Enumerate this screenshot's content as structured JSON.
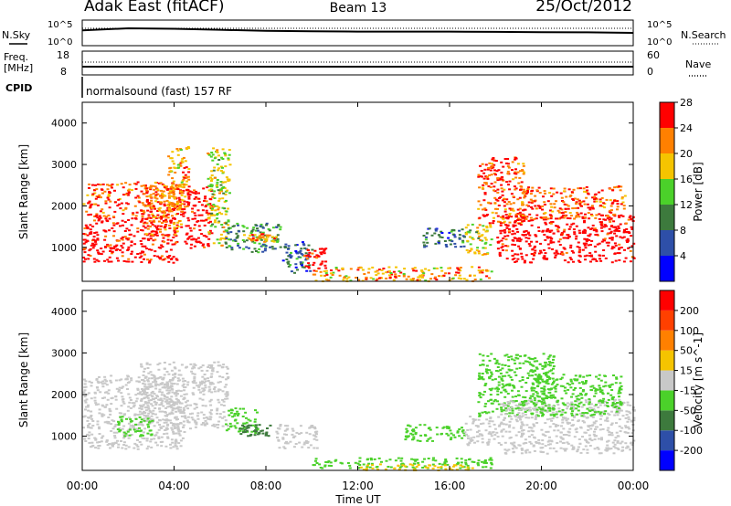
{
  "header": {
    "station": "Adak East (fitACF)",
    "beam": "Beam 13",
    "date": "25/Oct/2012"
  },
  "top_panels": {
    "nsky_label": "N.Sky",
    "nsearch_label": "N.Search",
    "noise_tick_top": "10^5",
    "noise_tick_bottom": "10^0",
    "freq_label_1": "Freq.",
    "freq_label_2": "[MHz]",
    "freq_ticks": [
      "18",
      "8"
    ],
    "nave_label": "Nave",
    "nave_ticks": [
      "60",
      "0"
    ],
    "cpid_label": "CPID",
    "cpid_text": "normalsound (fast) 157 RF"
  },
  "time_axis": {
    "label": "Time UT",
    "ticks": [
      "00:00",
      "04:00",
      "08:00",
      "12:00",
      "16:00",
      "20:00",
      "00:00"
    ]
  },
  "colors": {
    "power": [
      "#0000ff",
      "#2e4fa8",
      "#3d7a3d",
      "#4bd12a",
      "#f5c400",
      "#ff8000",
      "#ff0000"
    ],
    "velocity": [
      "#0000ff",
      "#2e4fa8",
      "#3d7a3d",
      "#4bd12a",
      "#c8c8c8",
      "#f5c400",
      "#ff8000",
      "#ff4000",
      "#ff0000"
    ],
    "sky_noise": "#000000"
  },
  "chart_data": [
    {
      "type": "line",
      "panel": "noise",
      "ylabel_left": "N.Sky",
      "ylabel_right": "N.Search",
      "ylim": [
        "10^0",
        "10^5"
      ],
      "x": [
        "00:00",
        "02:00",
        "04:00",
        "06:00",
        "08:00",
        "10:00",
        "12:00",
        "14:00",
        "16:00",
        "18:00",
        "20:00",
        "22:00",
        "24:00"
      ],
      "series": [
        {
          "name": "N.Sky",
          "values": [
            0.6,
            0.68,
            0.66,
            0.62,
            0.58,
            0.56,
            0.55,
            0.55,
            0.55,
            0.54,
            0.53,
            0.52,
            0.5
          ]
        }
      ]
    },
    {
      "type": "line",
      "panel": "frequency",
      "ylabel": "Freq. [MHz]",
      "ylim": [
        8,
        18
      ],
      "x": [
        "00:00",
        "24:00"
      ],
      "series": [
        {
          "values": [
            10.5,
            10.5
          ]
        }
      ]
    },
    {
      "type": "heatmap",
      "panel": "power",
      "title": "",
      "xlabel": "Time UT",
      "ylabel": "Slant Range [km]",
      "colorbar_label": "Power [dB]",
      "colorbar_ticks": [
        4,
        8,
        12,
        16,
        20,
        24,
        28
      ],
      "x_unit": "hours UT",
      "xlim": [
        0,
        24
      ],
      "ylim": [
        180,
        4500
      ],
      "y_ticks": [
        1000,
        2000,
        3000,
        4000
      ],
      "regions": [
        {
          "t0": 0.0,
          "t1": 4.1,
          "r0": 650,
          "r1": 1750,
          "value": 28
        },
        {
          "t0": 0.0,
          "t1": 4.4,
          "r0": 1750,
          "r1": 2600,
          "value": 24
        },
        {
          "t0": 2.6,
          "t1": 4.3,
          "r0": 1300,
          "r1": 2600,
          "value": 22
        },
        {
          "t0": 3.7,
          "t1": 4.6,
          "r0": 2000,
          "r1": 3500,
          "value": 20
        },
        {
          "t0": 4.4,
          "t1": 5.6,
          "r0": 1000,
          "r1": 2500,
          "value": 28
        },
        {
          "t0": 5.4,
          "t1": 6.4,
          "r0": 1000,
          "r1": 3500,
          "value": 16
        },
        {
          "t0": 6.2,
          "t1": 8.6,
          "r0": 900,
          "r1": 1600,
          "value": 10
        },
        {
          "t0": 7.0,
          "t1": 8.4,
          "r0": 1150,
          "r1": 1350,
          "value": 20
        },
        {
          "t0": 8.7,
          "t1": 10.0,
          "r0": 400,
          "r1": 1200,
          "value": 8
        },
        {
          "t0": 9.6,
          "t1": 10.6,
          "r0": 500,
          "r1": 1000,
          "value": 28
        },
        {
          "t0": 10.0,
          "t1": 17.8,
          "r0": 200,
          "r1": 550,
          "value": 20
        },
        {
          "t0": 14.8,
          "t1": 16.6,
          "r0": 1000,
          "r1": 1500,
          "value": 8
        },
        {
          "t0": 16.6,
          "t1": 17.8,
          "r0": 800,
          "r1": 1600,
          "value": 16
        },
        {
          "t0": 17.2,
          "t1": 19.2,
          "r0": 1600,
          "r1": 3200,
          "value": 24
        },
        {
          "t0": 18.0,
          "t1": 24.0,
          "r0": 650,
          "r1": 1800,
          "value": 28
        },
        {
          "t0": 19.0,
          "t1": 23.6,
          "r0": 1700,
          "r1": 2500,
          "value": 24
        }
      ]
    },
    {
      "type": "heatmap",
      "panel": "velocity",
      "title": "",
      "xlabel": "Time UT",
      "ylabel": "Slant Range [km]",
      "colorbar_label": "Velocity [m s^-1]",
      "colorbar_ticks": [
        200,
        100,
        50,
        15,
        -15,
        -50,
        -100,
        -200
      ],
      "x_unit": "hours UT",
      "xlim": [
        0,
        24
      ],
      "ylim": [
        180,
        4500
      ],
      "y_ticks": [
        1000,
        2000,
        3000,
        4000
      ],
      "regions": [
        {
          "t0": 0.0,
          "t1": 4.4,
          "r0": 700,
          "r1": 2500,
          "value": 0
        },
        {
          "t0": 2.5,
          "t1": 6.3,
          "r0": 1200,
          "r1": 2800,
          "value": 0
        },
        {
          "t0": 1.5,
          "t1": 3.0,
          "r0": 1000,
          "r1": 1500,
          "value": 30
        },
        {
          "t0": 6.2,
          "t1": 7.6,
          "r0": 1100,
          "r1": 1700,
          "value": 40
        },
        {
          "t0": 6.8,
          "t1": 8.2,
          "r0": 1000,
          "r1": 1300,
          "value": 70
        },
        {
          "t0": 8.4,
          "t1": 10.2,
          "r0": 700,
          "r1": 1300,
          "value": 0
        },
        {
          "t0": 10.0,
          "t1": 17.8,
          "r0": 250,
          "r1": 500,
          "value": 25
        },
        {
          "t0": 12.0,
          "t1": 17.0,
          "r0": 200,
          "r1": 350,
          "value": -40
        },
        {
          "t0": 14.0,
          "t1": 16.6,
          "r0": 900,
          "r1": 1300,
          "value": 30
        },
        {
          "t0": 16.6,
          "t1": 18.0,
          "r0": 800,
          "r1": 1500,
          "value": 0
        },
        {
          "t0": 17.2,
          "t1": 20.5,
          "r0": 1500,
          "r1": 3000,
          "value": 30
        },
        {
          "t0": 18.0,
          "t1": 24.0,
          "r0": 600,
          "r1": 1900,
          "value": 0
        },
        {
          "t0": 19.5,
          "t1": 23.5,
          "r0": 1500,
          "r1": 2500,
          "value": 25
        }
      ]
    }
  ]
}
